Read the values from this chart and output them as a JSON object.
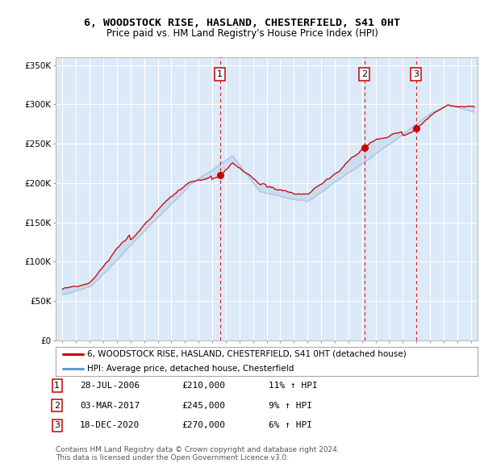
{
  "title1": "6, WOODSTOCK RISE, HASLAND, CHESTERFIELD, S41 0HT",
  "title2": "Price paid vs. HM Land Registry's House Price Index (HPI)",
  "legend_property": "6, WOODSTOCK RISE, HASLAND, CHESTERFIELD, S41 0HT (detached house)",
  "legend_hpi": "HPI: Average price, detached house, Chesterfield",
  "footnote1": "Contains HM Land Registry data © Crown copyright and database right 2024.",
  "footnote2": "This data is licensed under the Open Government Licence v3.0.",
  "transactions": [
    {
      "num": 1,
      "date": "28-JUL-2006",
      "date_dec": 2006.57,
      "price": 210000,
      "pct": "11%",
      "dir": "↑"
    },
    {
      "num": 2,
      "date": "03-MAR-2017",
      "date_dec": 2017.17,
      "price": 245000,
      "pct": "9%",
      "dir": "↑"
    },
    {
      "num": 3,
      "date": "18-DEC-2020",
      "date_dec": 2020.96,
      "price": 270000,
      "pct": "6%",
      "dir": "↑"
    }
  ],
  "ylim": [
    0,
    360000
  ],
  "yticks": [
    0,
    50000,
    100000,
    150000,
    200000,
    250000,
    300000,
    350000
  ],
  "ytick_labels": [
    "£0",
    "£50K",
    "£100K",
    "£150K",
    "£200K",
    "£250K",
    "£300K",
    "£350K"
  ],
  "xlim_start": 1994.5,
  "xlim_end": 2025.5,
  "background_color": "#dce9f8",
  "line_color_property": "#cc0000",
  "line_color_hpi": "#aac4e0",
  "box_color": "#cc0000",
  "grid_color": "#ffffff"
}
